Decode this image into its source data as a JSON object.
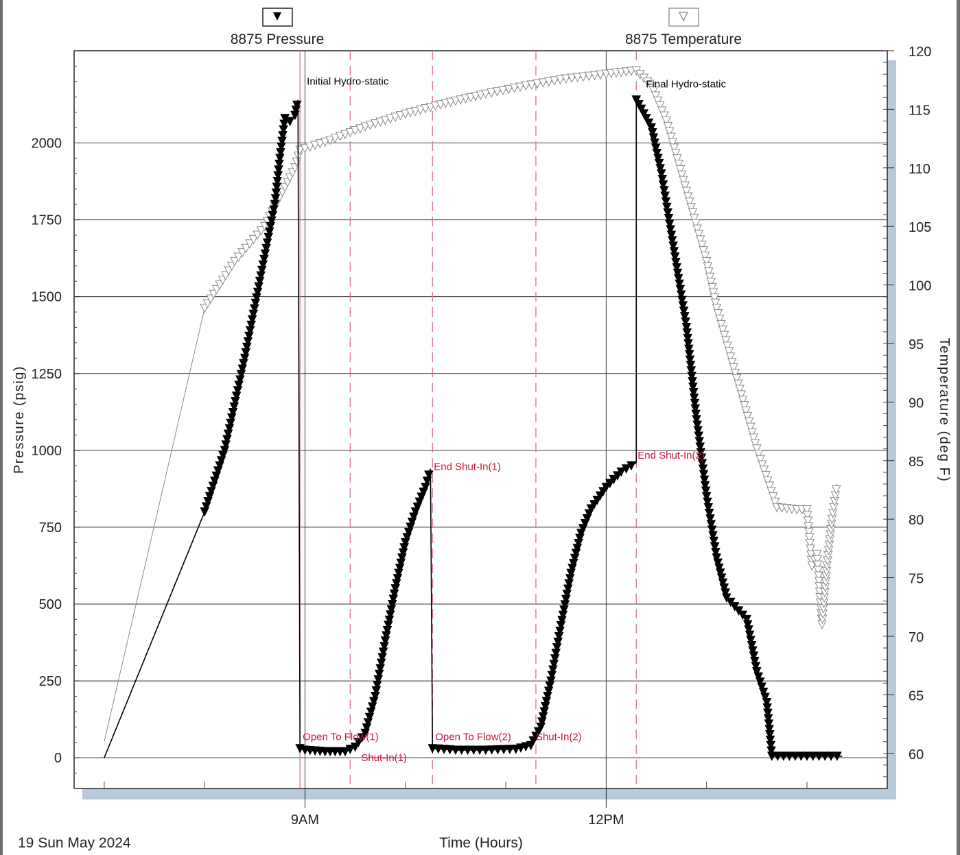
{
  "chart_data": {
    "type": "line",
    "date_label": "19 Sun May 2024",
    "xlabel": "Time (Hours)",
    "ylabel_left": "Pressure (psig)",
    "ylabel_right": "Temperature (deg F)",
    "x_range_hours": [
      6.7,
      14.8
    ],
    "x_ticks": [
      {
        "value": 9,
        "label": "9AM"
      },
      {
        "value": 12,
        "label": "12PM"
      }
    ],
    "x_minor_ticks": [
      7,
      8,
      10,
      11,
      13,
      14
    ],
    "y_left_range": [
      -100,
      2300
    ],
    "y_left_ticks": [
      0,
      250,
      500,
      750,
      1000,
      1250,
      1500,
      1750,
      2000
    ],
    "y_right_range": [
      57,
      120
    ],
    "y_right_ticks": [
      60,
      65,
      70,
      75,
      80,
      85,
      90,
      95,
      100,
      105,
      110,
      115,
      120
    ],
    "grid": true,
    "legend": [
      {
        "name": "8875 Pressure",
        "marker": "filled-triangle-down"
      },
      {
        "name": "8875 Temperature",
        "marker": "hollow-triangle-down"
      }
    ],
    "series": [
      {
        "name": "8875 Pressure",
        "axis": "left",
        "color": "#000000",
        "points": [
          [
            7.0,
            0
          ],
          [
            8.0,
            800
          ],
          [
            8.2,
            1000
          ],
          [
            8.4,
            1300
          ],
          [
            8.55,
            1550
          ],
          [
            8.7,
            1800
          ],
          [
            8.75,
            1950
          ],
          [
            8.8,
            2080
          ],
          [
            8.85,
            2070
          ],
          [
            8.9,
            2090
          ],
          [
            8.93,
            2140
          ],
          [
            8.95,
            30
          ],
          [
            9.0,
            25
          ],
          [
            9.2,
            20
          ],
          [
            9.4,
            20
          ],
          [
            9.5,
            35
          ],
          [
            9.6,
            80
          ],
          [
            9.7,
            200
          ],
          [
            9.8,
            380
          ],
          [
            9.9,
            550
          ],
          [
            10.0,
            700
          ],
          [
            10.1,
            800
          ],
          [
            10.2,
            880
          ],
          [
            10.25,
            940
          ],
          [
            10.27,
            30
          ],
          [
            10.5,
            25
          ],
          [
            10.8,
            25
          ],
          [
            11.1,
            28
          ],
          [
            11.25,
            40
          ],
          [
            11.35,
            100
          ],
          [
            11.45,
            250
          ],
          [
            11.55,
            430
          ],
          [
            11.65,
            600
          ],
          [
            11.75,
            730
          ],
          [
            11.85,
            810
          ],
          [
            12.0,
            880
          ],
          [
            12.15,
            930
          ],
          [
            12.3,
            960
          ],
          [
            12.3,
            2140
          ],
          [
            12.45,
            2050
          ],
          [
            12.55,
            1900
          ],
          [
            12.65,
            1700
          ],
          [
            12.8,
            1400
          ],
          [
            12.9,
            1100
          ],
          [
            13.0,
            850
          ],
          [
            13.1,
            650
          ],
          [
            13.2,
            520
          ],
          [
            13.4,
            450
          ],
          [
            13.5,
            280
          ],
          [
            13.6,
            180
          ],
          [
            13.65,
            5
          ],
          [
            14.0,
            5
          ],
          [
            14.3,
            5
          ],
          [
            14.35,
            5
          ]
        ]
      },
      {
        "name": "8875 Temperature",
        "axis": "right",
        "color": "#8a8a8a",
        "points": [
          [
            7.0,
            61
          ],
          [
            8.0,
            98
          ],
          [
            8.3,
            102
          ],
          [
            8.6,
            105
          ],
          [
            8.9,
            110
          ],
          [
            8.95,
            111.5
          ],
          [
            9.2,
            112.2
          ],
          [
            9.6,
            113.5
          ],
          [
            10.0,
            114.6
          ],
          [
            10.4,
            115.5
          ],
          [
            10.8,
            116.3
          ],
          [
            11.2,
            117
          ],
          [
            11.6,
            117.6
          ],
          [
            12.0,
            118
          ],
          [
            12.3,
            118.3
          ],
          [
            12.45,
            117
          ],
          [
            12.6,
            114
          ],
          [
            12.8,
            108
          ],
          [
            13.0,
            102
          ],
          [
            13.1,
            98
          ],
          [
            13.3,
            92
          ],
          [
            13.5,
            86
          ],
          [
            13.7,
            81
          ],
          [
            13.9,
            80.8
          ],
          [
            14.0,
            80.8
          ],
          [
            14.05,
            76
          ],
          [
            14.1,
            77
          ],
          [
            14.15,
            71
          ],
          [
            14.2,
            76
          ],
          [
            14.25,
            80
          ],
          [
            14.3,
            83
          ]
        ]
      }
    ],
    "event_lines": [
      {
        "x": 8.95,
        "style": "solid"
      },
      {
        "x": 9.45,
        "style": "dashed"
      },
      {
        "x": 10.27,
        "style": "dashed"
      },
      {
        "x": 11.3,
        "style": "dashed"
      },
      {
        "x": 12.3,
        "style": "dashed"
      }
    ],
    "annotations": [
      {
        "text": "Initial Hydro-static",
        "color": "#000000",
        "x": 8.95,
        "y": 2140
      },
      {
        "text": "Final Hydro-static",
        "color": "#000000",
        "x": 12.3,
        "y": 2140
      },
      {
        "text": "End Shut-In(1)",
        "color": "#d0143c",
        "x": 10.27,
        "y": 940
      },
      {
        "text": "End Shut-In(2)",
        "color": "#d0143c",
        "x": 12.3,
        "y": 960
      },
      {
        "text": "Open To Flow(1)",
        "color": "#d0143c",
        "x": 8.95,
        "y": 30
      },
      {
        "text": "Shut-In(1)",
        "color": "#d0143c",
        "x": 9.45,
        "y": 20
      },
      {
        "text": "Open To Flow(2)",
        "color": "#d0143c",
        "x": 10.27,
        "y": 30
      },
      {
        "text": "Shut-In(2)",
        "color": "#d0143c",
        "x": 11.3,
        "y": 30
      }
    ]
  }
}
